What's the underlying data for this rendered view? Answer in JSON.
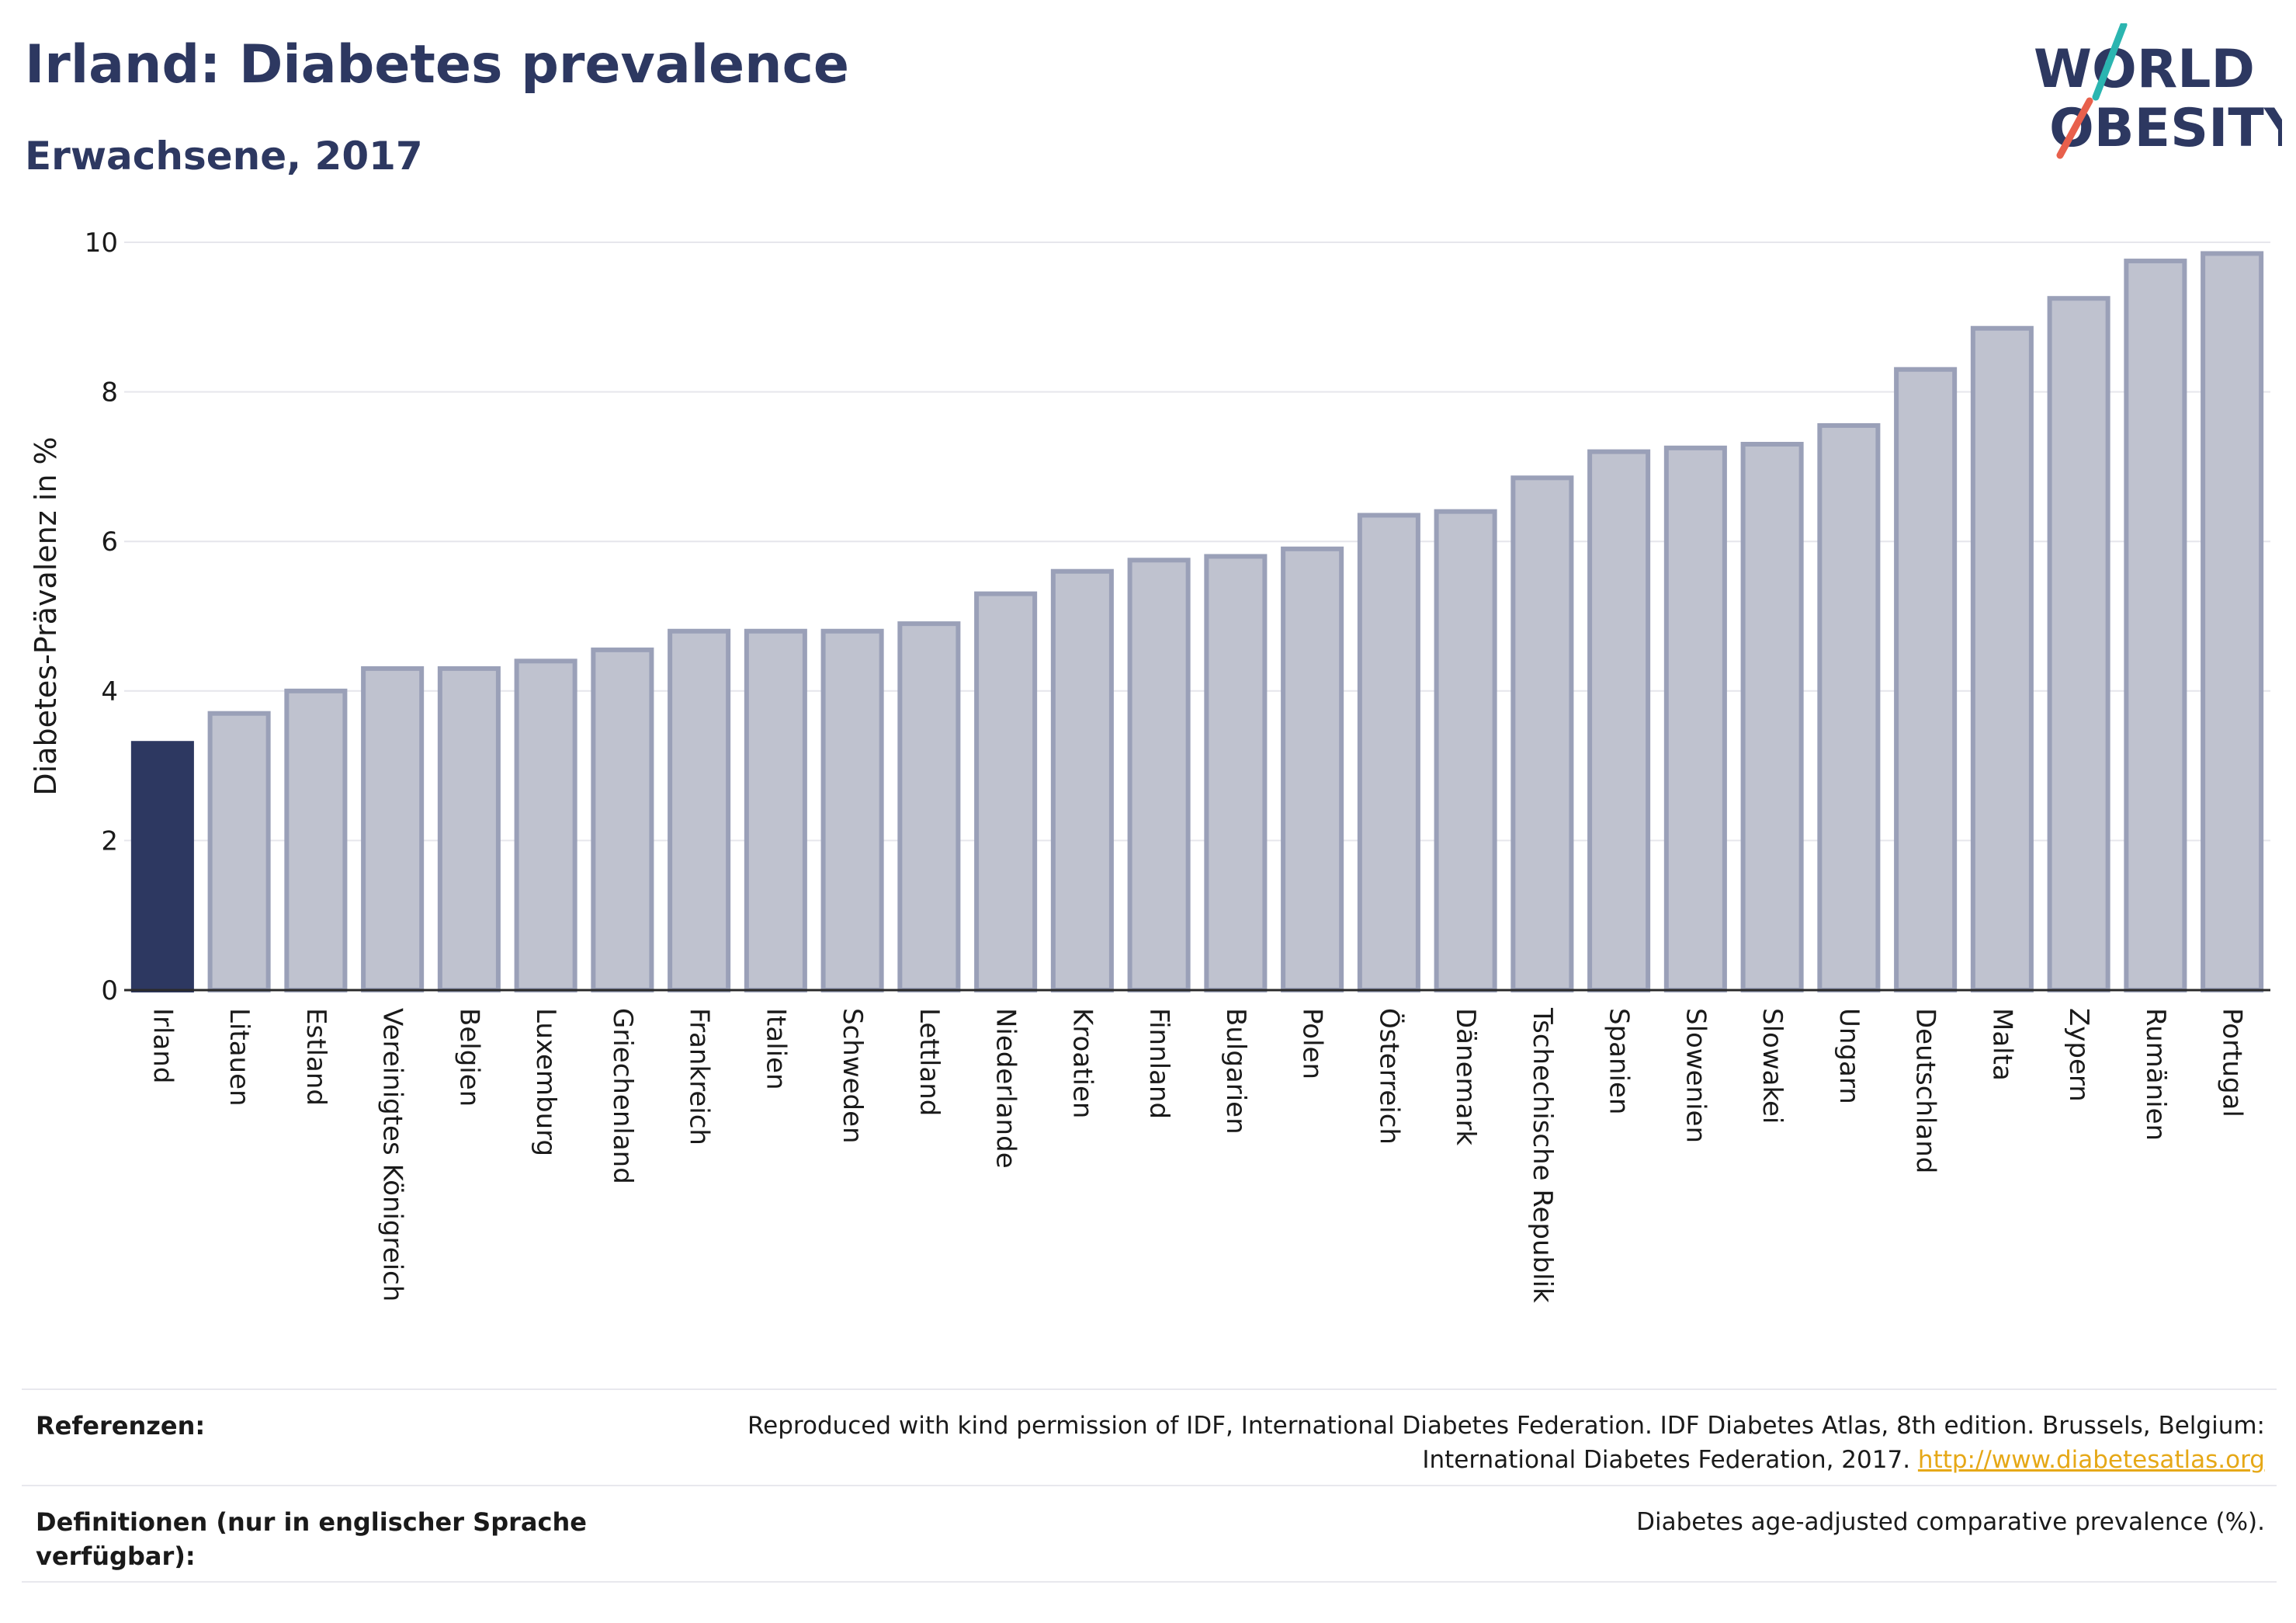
{
  "header": {
    "title": "Irland: Diabetes prevalence",
    "subtitle": "Erwachsene, 2017"
  },
  "logo": {
    "line1": "WORLD",
    "line2": "OBESITY",
    "accent_teal": "#2bb5b0",
    "accent_red": "#e8604c"
  },
  "colors": {
    "highlight_bar": "#2d3861",
    "bar_fill": "#bfc2cf",
    "bar_stroke": "#9aa0b8",
    "text": "#2d3861"
  },
  "chart_data": {
    "type": "bar",
    "title": "",
    "xlabel": "",
    "ylabel": "Diabetes-Prävalenz in %",
    "ylim": [
      0,
      10
    ],
    "yticks": [
      0,
      2,
      4,
      6,
      8,
      10
    ],
    "grid": true,
    "highlight": "Irland",
    "categories": [
      "Irland",
      "Litauen",
      "Estland",
      "Vereinigtes Königreich",
      "Belgien",
      "Luxemburg",
      "Griechenland",
      "Frankreich",
      "Italien",
      "Schweden",
      "Lettland",
      "Niederlande",
      "Kroatien",
      "Finnland",
      "Bulgarien",
      "Polen",
      "Österreich",
      "Dänemark",
      "Tschechische Republik",
      "Spanien",
      "Slowenien",
      "Slowakei",
      "Ungarn",
      "Deutschland",
      "Malta",
      "Zypern",
      "Rumänien",
      "Portugal"
    ],
    "values": [
      3.3,
      3.7,
      4.0,
      4.3,
      4.3,
      4.4,
      4.55,
      4.8,
      4.8,
      4.8,
      4.9,
      5.3,
      5.6,
      5.75,
      5.8,
      5.9,
      6.35,
      6.4,
      6.85,
      7.2,
      7.25,
      7.3,
      7.55,
      8.3,
      8.85,
      9.25,
      9.75,
      9.85
    ]
  },
  "references": {
    "ref_label": "Referenzen:",
    "ref_text_line1": "Reproduced with kind permission of IDF, International Diabetes Federation. IDF Diabetes Atlas, 8th edition. Brussels, Belgium:",
    "ref_text_line2": "International Diabetes Federation, 2017.",
    "ref_link": "http://www.diabetesatlas.org",
    "def_label_line1": "Definitionen (nur in englischer Sprache",
    "def_label_line2": "verfügbar):",
    "def_text": "Diabetes age-adjusted comparative prevalence (%)."
  }
}
